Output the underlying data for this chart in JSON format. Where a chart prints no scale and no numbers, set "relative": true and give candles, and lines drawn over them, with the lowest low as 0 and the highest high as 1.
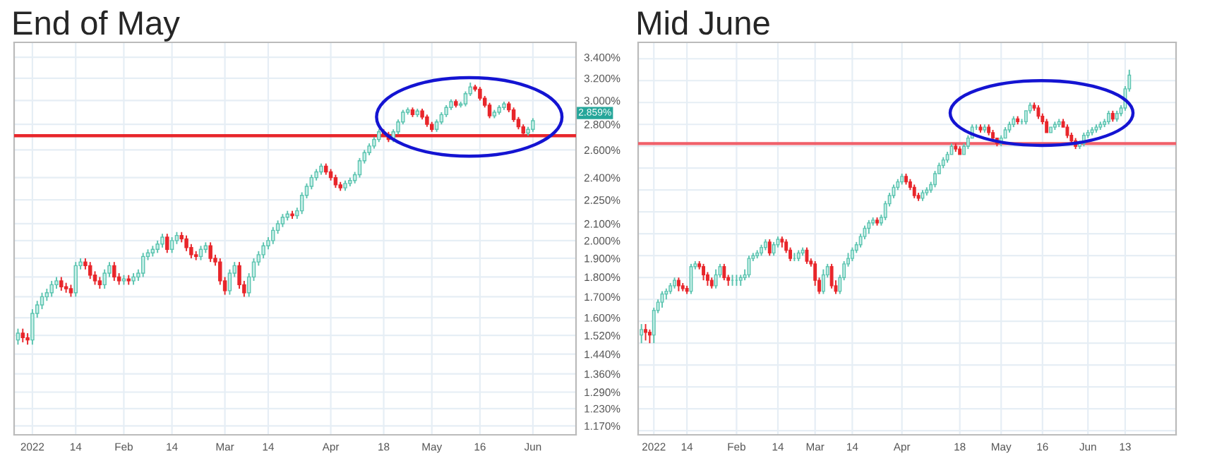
{
  "chart_data": [
    {
      "type": "candlestick",
      "title": "End of May",
      "log": true,
      "grid": true,
      "categories": [
        null,
        null,
        null,
        "2022",
        null,
        null,
        null,
        null,
        null,
        null,
        null,
        null,
        "14",
        null,
        null,
        null,
        null,
        null,
        null,
        null,
        null,
        null,
        "Feb",
        null,
        null,
        null,
        null,
        null,
        null,
        null,
        null,
        null,
        "14",
        null,
        null,
        null,
        null,
        null,
        null,
        null,
        null,
        null,
        null,
        "Mar",
        null,
        null,
        null,
        null,
        null,
        null,
        null,
        null,
        "14",
        null,
        null,
        null,
        null,
        null,
        null,
        null,
        null,
        null,
        null,
        null,
        null,
        "Apr",
        null,
        null,
        null,
        null,
        null,
        null,
        null,
        null,
        null,
        null,
        "18",
        null,
        null,
        null,
        null,
        null,
        null,
        null,
        null,
        null,
        "May",
        null,
        null,
        null,
        null,
        null,
        null,
        null,
        null,
        null,
        "16",
        null,
        null,
        null,
        null,
        null,
        null,
        null,
        null,
        null,
        null,
        "Jun"
      ],
      "ohlc": [
        [
          1.5,
          1.55,
          1.48,
          1.53
        ],
        [
          1.53,
          1.55,
          1.49,
          1.51
        ],
        [
          1.51,
          1.53,
          1.48,
          1.5
        ],
        [
          1.5,
          1.64,
          1.48,
          1.62
        ],
        [
          1.62,
          1.68,
          1.6,
          1.66
        ],
        [
          1.66,
          1.72,
          1.64,
          1.7
        ],
        [
          1.7,
          1.74,
          1.68,
          1.72
        ],
        [
          1.72,
          1.78,
          1.7,
          1.76
        ],
        [
          1.76,
          1.8,
          1.74,
          1.78
        ],
        [
          1.78,
          1.8,
          1.73,
          1.75
        ],
        [
          1.75,
          1.77,
          1.72,
          1.74
        ],
        [
          1.74,
          1.76,
          1.7,
          1.72
        ],
        [
          1.72,
          1.88,
          1.7,
          1.86
        ],
        [
          1.86,
          1.9,
          1.84,
          1.88
        ],
        [
          1.88,
          1.9,
          1.84,
          1.86
        ],
        [
          1.86,
          1.88,
          1.79,
          1.81
        ],
        [
          1.81,
          1.83,
          1.76,
          1.78
        ],
        [
          1.78,
          1.8,
          1.74,
          1.76
        ],
        [
          1.76,
          1.84,
          1.74,
          1.82
        ],
        [
          1.82,
          1.88,
          1.8,
          1.86
        ],
        [
          1.86,
          1.88,
          1.78,
          1.8
        ],
        [
          1.8,
          1.82,
          1.76,
          1.78
        ],
        [
          1.78,
          1.81,
          1.76,
          1.79
        ],
        [
          1.79,
          1.81,
          1.76,
          1.78
        ],
        [
          1.78,
          1.82,
          1.76,
          1.8
        ],
        [
          1.8,
          1.84,
          1.78,
          1.82
        ],
        [
          1.82,
          1.93,
          1.8,
          1.91
        ],
        [
          1.91,
          1.95,
          1.89,
          1.93
        ],
        [
          1.93,
          1.97,
          1.91,
          1.95
        ],
        [
          1.95,
          2.0,
          1.93,
          1.98
        ],
        [
          1.98,
          2.04,
          1.96,
          2.02
        ],
        [
          2.02,
          2.04,
          1.93,
          1.95
        ],
        [
          1.95,
          2.02,
          1.93,
          2.0
        ],
        [
          2.0,
          2.05,
          1.98,
          2.03
        ],
        [
          2.03,
          2.05,
          1.99,
          2.01
        ],
        [
          2.01,
          2.03,
          1.94,
          1.96
        ],
        [
          1.96,
          1.98,
          1.9,
          1.92
        ],
        [
          1.92,
          1.94,
          1.89,
          1.91
        ],
        [
          1.91,
          1.97,
          1.89,
          1.95
        ],
        [
          1.95,
          1.99,
          1.93,
          1.97
        ],
        [
          1.97,
          1.99,
          1.88,
          1.9
        ],
        [
          1.9,
          1.92,
          1.86,
          1.88
        ],
        [
          1.88,
          1.9,
          1.76,
          1.78
        ],
        [
          1.78,
          1.8,
          1.71,
          1.73
        ],
        [
          1.73,
          1.84,
          1.71,
          1.82
        ],
        [
          1.82,
          1.88,
          1.8,
          1.86
        ],
        [
          1.86,
          1.88,
          1.74,
          1.76
        ],
        [
          1.76,
          1.78,
          1.7,
          1.72
        ],
        [
          1.72,
          1.82,
          1.7,
          1.8
        ],
        [
          1.8,
          1.9,
          1.78,
          1.88
        ],
        [
          1.88,
          1.94,
          1.86,
          1.92
        ],
        [
          1.92,
          1.99,
          1.9,
          1.97
        ],
        [
          1.97,
          2.02,
          1.95,
          2.0
        ],
        [
          2.0,
          2.08,
          1.98,
          2.06
        ],
        [
          2.06,
          2.12,
          2.04,
          2.1
        ],
        [
          2.1,
          2.16,
          2.08,
          2.14
        ],
        [
          2.14,
          2.18,
          2.12,
          2.16
        ],
        [
          2.16,
          2.18,
          2.13,
          2.15
        ],
        [
          2.15,
          2.2,
          2.13,
          2.18
        ],
        [
          2.18,
          2.3,
          2.16,
          2.28
        ],
        [
          2.28,
          2.36,
          2.26,
          2.34
        ],
        [
          2.34,
          2.42,
          2.32,
          2.4
        ],
        [
          2.4,
          2.46,
          2.38,
          2.44
        ],
        [
          2.44,
          2.5,
          2.42,
          2.48
        ],
        [
          2.48,
          2.5,
          2.42,
          2.44
        ],
        [
          2.44,
          2.46,
          2.38,
          2.4
        ],
        [
          2.4,
          2.42,
          2.33,
          2.35
        ],
        [
          2.35,
          2.37,
          2.31,
          2.33
        ],
        [
          2.33,
          2.38,
          2.31,
          2.36
        ],
        [
          2.36,
          2.4,
          2.34,
          2.38
        ],
        [
          2.38,
          2.44,
          2.36,
          2.42
        ],
        [
          2.42,
          2.54,
          2.4,
          2.52
        ],
        [
          2.52,
          2.6,
          2.5,
          2.58
        ],
        [
          2.58,
          2.65,
          2.56,
          2.63
        ],
        [
          2.63,
          2.7,
          2.61,
          2.68
        ],
        [
          2.68,
          2.76,
          2.66,
          2.74
        ],
        [
          2.74,
          2.76,
          2.7,
          2.72
        ],
        [
          2.72,
          2.74,
          2.66,
          2.68
        ],
        [
          2.68,
          2.76,
          2.66,
          2.74
        ],
        [
          2.74,
          2.84,
          2.72,
          2.82
        ],
        [
          2.82,
          2.92,
          2.8,
          2.9
        ],
        [
          2.9,
          2.94,
          2.88,
          2.92
        ],
        [
          2.92,
          2.94,
          2.86,
          2.88
        ],
        [
          2.88,
          2.93,
          2.86,
          2.91
        ],
        [
          2.91,
          2.93,
          2.84,
          2.86
        ],
        [
          2.86,
          2.88,
          2.78,
          2.8
        ],
        [
          2.8,
          2.82,
          2.74,
          2.76
        ],
        [
          2.76,
          2.84,
          2.74,
          2.82
        ],
        [
          2.82,
          2.9,
          2.8,
          2.88
        ],
        [
          2.88,
          2.96,
          2.86,
          2.94
        ],
        [
          2.94,
          3.01,
          2.92,
          2.99
        ],
        [
          2.99,
          3.01,
          2.94,
          2.96
        ],
        [
          2.96,
          2.99,
          2.94,
          2.97
        ],
        [
          2.97,
          3.08,
          2.95,
          3.06
        ],
        [
          3.06,
          3.16,
          3.04,
          3.12
        ],
        [
          3.12,
          3.14,
          3.08,
          3.1
        ],
        [
          3.1,
          3.12,
          3.0,
          3.02
        ],
        [
          3.02,
          3.04,
          2.94,
          2.96
        ],
        [
          2.96,
          2.98,
          2.85,
          2.87
        ],
        [
          2.87,
          2.92,
          2.85,
          2.9
        ],
        [
          2.9,
          2.96,
          2.88,
          2.94
        ],
        [
          2.94,
          2.99,
          2.92,
          2.97
        ],
        [
          2.97,
          2.99,
          2.9,
          2.92
        ],
        [
          2.92,
          2.94,
          2.82,
          2.84
        ],
        [
          2.84,
          2.86,
          2.76,
          2.78
        ],
        [
          2.78,
          2.8,
          2.71,
          2.73
        ],
        [
          2.73,
          2.78,
          2.71,
          2.76
        ],
        [
          2.76,
          2.85,
          2.74,
          2.83
        ]
      ],
      "ylim": [
        1.14,
        3.55
      ],
      "yticks": [
        {
          "value": 1.17,
          "label": "1.170%"
        },
        {
          "value": 1.23,
          "label": "1.230%"
        },
        {
          "value": 1.29,
          "label": "1.290%"
        },
        {
          "value": 1.36,
          "label": "1.360%"
        },
        {
          "value": 1.44,
          "label": "1.440%"
        },
        {
          "value": 1.52,
          "label": "1.520%"
        },
        {
          "value": 1.6,
          "label": "1.600%"
        },
        {
          "value": 1.7,
          "label": "1.700%"
        },
        {
          "value": 1.8,
          "label": "1.800%"
        },
        {
          "value": 1.9,
          "label": "1.900%"
        },
        {
          "value": 2.0,
          "label": "2.000%"
        },
        {
          "value": 2.1,
          "label": "2.100%"
        },
        {
          "value": 2.25,
          "label": "2.250%"
        },
        {
          "value": 2.4,
          "label": "2.400%"
        },
        {
          "value": 2.6,
          "label": "2.600%"
        },
        {
          "value": 2.8,
          "label": "2.800%"
        },
        {
          "value": 3.0,
          "label": "3.000%"
        },
        {
          "value": 3.2,
          "label": "3.200%"
        },
        {
          "value": 3.4,
          "label": "3.400%"
        }
      ],
      "ref_lines": [
        {
          "axis": "y",
          "value": 2.71,
          "color": "#e8262b"
        }
      ],
      "annotations": [
        "2.859%"
      ]
    },
    {
      "type": "candlestick",
      "title": "Mid June",
      "relative": true,
      "grid": true,
      "tick_labels": "x",
      "categories": [
        null,
        null,
        null,
        "2022",
        null,
        null,
        null,
        null,
        null,
        null,
        null,
        "14",
        null,
        null,
        null,
        null,
        null,
        null,
        null,
        null,
        null,
        null,
        null,
        "Feb",
        null,
        null,
        null,
        null,
        null,
        null,
        null,
        null,
        null,
        "14",
        null,
        null,
        null,
        null,
        null,
        null,
        null,
        null,
        "Mar",
        null,
        null,
        null,
        null,
        null,
        null,
        null,
        null,
        "14",
        null,
        null,
        null,
        null,
        null,
        null,
        null,
        null,
        null,
        null,
        null,
        "Apr",
        null,
        null,
        null,
        null,
        null,
        null,
        null,
        null,
        null,
        null,
        null,
        null,
        null,
        "18",
        null,
        null,
        null,
        null,
        null,
        null,
        null,
        null,
        null,
        "May",
        null,
        null,
        null,
        null,
        null,
        null,
        null,
        null,
        null,
        "16",
        null,
        null,
        null,
        null,
        null,
        null,
        null,
        null,
        null,
        null,
        "Jun",
        null,
        null,
        null,
        null,
        null,
        null,
        null,
        null,
        "13",
        null
      ],
      "ohlc": [
        [
          0.03,
          0.07,
          0.0,
          0.05
        ],
        [
          0.05,
          0.07,
          0.01,
          0.04
        ],
        [
          0.04,
          0.05,
          0.0,
          0.03
        ],
        [
          0.03,
          0.13,
          0.0,
          0.12
        ],
        [
          0.12,
          0.16,
          0.11,
          0.15
        ],
        [
          0.15,
          0.19,
          0.13,
          0.18
        ],
        [
          0.18,
          0.2,
          0.16,
          0.19
        ],
        [
          0.19,
          0.22,
          0.18,
          0.21
        ],
        [
          0.21,
          0.24,
          0.2,
          0.23
        ],
        [
          0.23,
          0.24,
          0.19,
          0.21
        ],
        [
          0.21,
          0.22,
          0.19,
          0.2
        ],
        [
          0.2,
          0.21,
          0.18,
          0.19
        ],
        [
          0.19,
          0.29,
          0.18,
          0.28
        ],
        [
          0.28,
          0.3,
          0.27,
          0.29
        ],
        [
          0.29,
          0.3,
          0.27,
          0.28
        ],
        [
          0.28,
          0.29,
          0.23,
          0.25
        ],
        [
          0.25,
          0.26,
          0.21,
          0.23
        ],
        [
          0.23,
          0.24,
          0.2,
          0.21
        ],
        [
          0.21,
          0.27,
          0.2,
          0.25
        ],
        [
          0.25,
          0.29,
          0.24,
          0.28
        ],
        [
          0.28,
          0.29,
          0.23,
          0.24
        ],
        [
          0.24,
          0.25,
          0.21,
          0.23
        ],
        [
          0.23,
          0.25,
          0.21,
          0.23
        ],
        [
          0.23,
          0.25,
          0.21,
          0.23
        ],
        [
          0.23,
          0.25,
          0.21,
          0.24
        ],
        [
          0.24,
          0.27,
          0.23,
          0.25
        ],
        [
          0.25,
          0.32,
          0.24,
          0.31
        ],
        [
          0.31,
          0.33,
          0.3,
          0.32
        ],
        [
          0.32,
          0.34,
          0.31,
          0.33
        ],
        [
          0.33,
          0.36,
          0.32,
          0.35
        ],
        [
          0.35,
          0.38,
          0.34,
          0.37
        ],
        [
          0.37,
          0.38,
          0.32,
          0.33
        ],
        [
          0.33,
          0.37,
          0.32,
          0.36
        ],
        [
          0.36,
          0.39,
          0.35,
          0.38
        ],
        [
          0.38,
          0.39,
          0.35,
          0.37
        ],
        [
          0.37,
          0.38,
          0.33,
          0.34
        ],
        [
          0.34,
          0.35,
          0.3,
          0.31
        ],
        [
          0.31,
          0.33,
          0.3,
          0.31
        ],
        [
          0.31,
          0.34,
          0.3,
          0.33
        ],
        [
          0.33,
          0.35,
          0.32,
          0.34
        ],
        [
          0.34,
          0.35,
          0.29,
          0.3
        ],
        [
          0.3,
          0.31,
          0.28,
          0.29
        ],
        [
          0.29,
          0.3,
          0.21,
          0.23
        ],
        [
          0.23,
          0.24,
          0.18,
          0.19
        ],
        [
          0.19,
          0.27,
          0.18,
          0.25
        ],
        [
          0.25,
          0.29,
          0.24,
          0.28
        ],
        [
          0.28,
          0.29,
          0.2,
          0.21
        ],
        [
          0.21,
          0.23,
          0.18,
          0.19
        ],
        [
          0.19,
          0.25,
          0.18,
          0.24
        ],
        [
          0.24,
          0.3,
          0.23,
          0.29
        ],
        [
          0.29,
          0.33,
          0.28,
          0.31
        ],
        [
          0.31,
          0.35,
          0.3,
          0.34
        ],
        [
          0.34,
          0.37,
          0.33,
          0.36
        ],
        [
          0.36,
          0.4,
          0.35,
          0.39
        ],
        [
          0.39,
          0.43,
          0.38,
          0.42
        ],
        [
          0.42,
          0.45,
          0.4,
          0.44
        ],
        [
          0.44,
          0.46,
          0.43,
          0.45
        ],
        [
          0.45,
          0.46,
          0.43,
          0.44
        ],
        [
          0.44,
          0.47,
          0.43,
          0.46
        ],
        [
          0.46,
          0.52,
          0.45,
          0.51
        ],
        [
          0.51,
          0.55,
          0.5,
          0.54
        ],
        [
          0.54,
          0.58,
          0.53,
          0.57
        ],
        [
          0.57,
          0.6,
          0.56,
          0.59
        ],
        [
          0.59,
          0.62,
          0.58,
          0.61
        ],
        [
          0.61,
          0.62,
          0.58,
          0.59
        ],
        [
          0.59,
          0.6,
          0.56,
          0.57
        ],
        [
          0.57,
          0.58,
          0.53,
          0.54
        ],
        [
          0.54,
          0.55,
          0.52,
          0.53
        ],
        [
          0.53,
          0.56,
          0.52,
          0.55
        ],
        [
          0.55,
          0.57,
          0.54,
          0.56
        ],
        [
          0.56,
          0.59,
          0.55,
          0.58
        ],
        [
          0.58,
          0.63,
          0.57,
          0.62
        ],
        [
          0.62,
          0.66,
          0.62,
          0.65
        ],
        [
          0.65,
          0.68,
          0.64,
          0.67
        ],
        [
          0.67,
          0.7,
          0.66,
          0.69
        ],
        [
          0.69,
          0.73,
          0.69,
          0.72
        ],
        [
          0.72,
          0.73,
          0.7,
          0.71
        ],
        [
          0.71,
          0.72,
          0.69,
          0.69
        ],
        [
          0.69,
          0.73,
          0.69,
          0.72
        ],
        [
          0.72,
          0.76,
          0.71,
          0.75
        ],
        [
          0.75,
          0.8,
          0.75,
          0.79
        ],
        [
          0.79,
          0.8,
          0.78,
          0.79
        ],
        [
          0.79,
          0.8,
          0.77,
          0.78
        ],
        [
          0.78,
          0.8,
          0.77,
          0.79
        ],
        [
          0.79,
          0.8,
          0.76,
          0.77
        ],
        [
          0.77,
          0.78,
          0.74,
          0.75
        ],
        [
          0.75,
          0.75,
          0.72,
          0.73
        ],
        [
          0.73,
          0.76,
          0.72,
          0.75
        ],
        [
          0.75,
          0.79,
          0.75,
          0.78
        ],
        [
          0.78,
          0.81,
          0.77,
          0.8
        ],
        [
          0.8,
          0.83,
          0.79,
          0.82
        ],
        [
          0.82,
          0.83,
          0.8,
          0.81
        ],
        [
          0.81,
          0.82,
          0.8,
          0.81
        ],
        [
          0.81,
          0.85,
          0.8,
          0.85
        ],
        [
          0.85,
          0.88,
          0.84,
          0.87
        ],
        [
          0.87,
          0.88,
          0.85,
          0.86
        ],
        [
          0.86,
          0.87,
          0.82,
          0.83
        ],
        [
          0.83,
          0.84,
          0.8,
          0.81
        ],
        [
          0.81,
          0.82,
          0.77,
          0.77
        ],
        [
          0.77,
          0.79,
          0.77,
          0.79
        ],
        [
          0.79,
          0.81,
          0.78,
          0.8
        ],
        [
          0.8,
          0.82,
          0.79,
          0.81
        ],
        [
          0.81,
          0.82,
          0.79,
          0.79
        ],
        [
          0.79,
          0.8,
          0.75,
          0.76
        ],
        [
          0.76,
          0.77,
          0.73,
          0.74
        ],
        [
          0.74,
          0.75,
          0.71,
          0.72
        ],
        [
          0.72,
          0.74,
          0.71,
          0.73
        ],
        [
          0.73,
          0.77,
          0.72,
          0.76
        ],
        [
          0.76,
          0.78,
          0.75,
          0.77
        ],
        [
          0.77,
          0.79,
          0.76,
          0.78
        ],
        [
          0.78,
          0.8,
          0.77,
          0.79
        ],
        [
          0.79,
          0.81,
          0.78,
          0.8
        ],
        [
          0.8,
          0.82,
          0.79,
          0.81
        ],
        [
          0.81,
          0.85,
          0.8,
          0.84
        ],
        [
          0.84,
          0.85,
          0.81,
          0.82
        ],
        [
          0.82,
          0.85,
          0.81,
          0.84
        ],
        [
          0.84,
          0.87,
          0.83,
          0.86
        ],
        [
          0.86,
          0.94,
          0.85,
          0.93
        ],
        [
          0.93,
          1.0,
          0.92,
          0.98
        ]
      ],
      "ref_lines": [
        {
          "axis": "y",
          "value": 0.73,
          "color": "#f0606a"
        }
      ]
    }
  ]
}
